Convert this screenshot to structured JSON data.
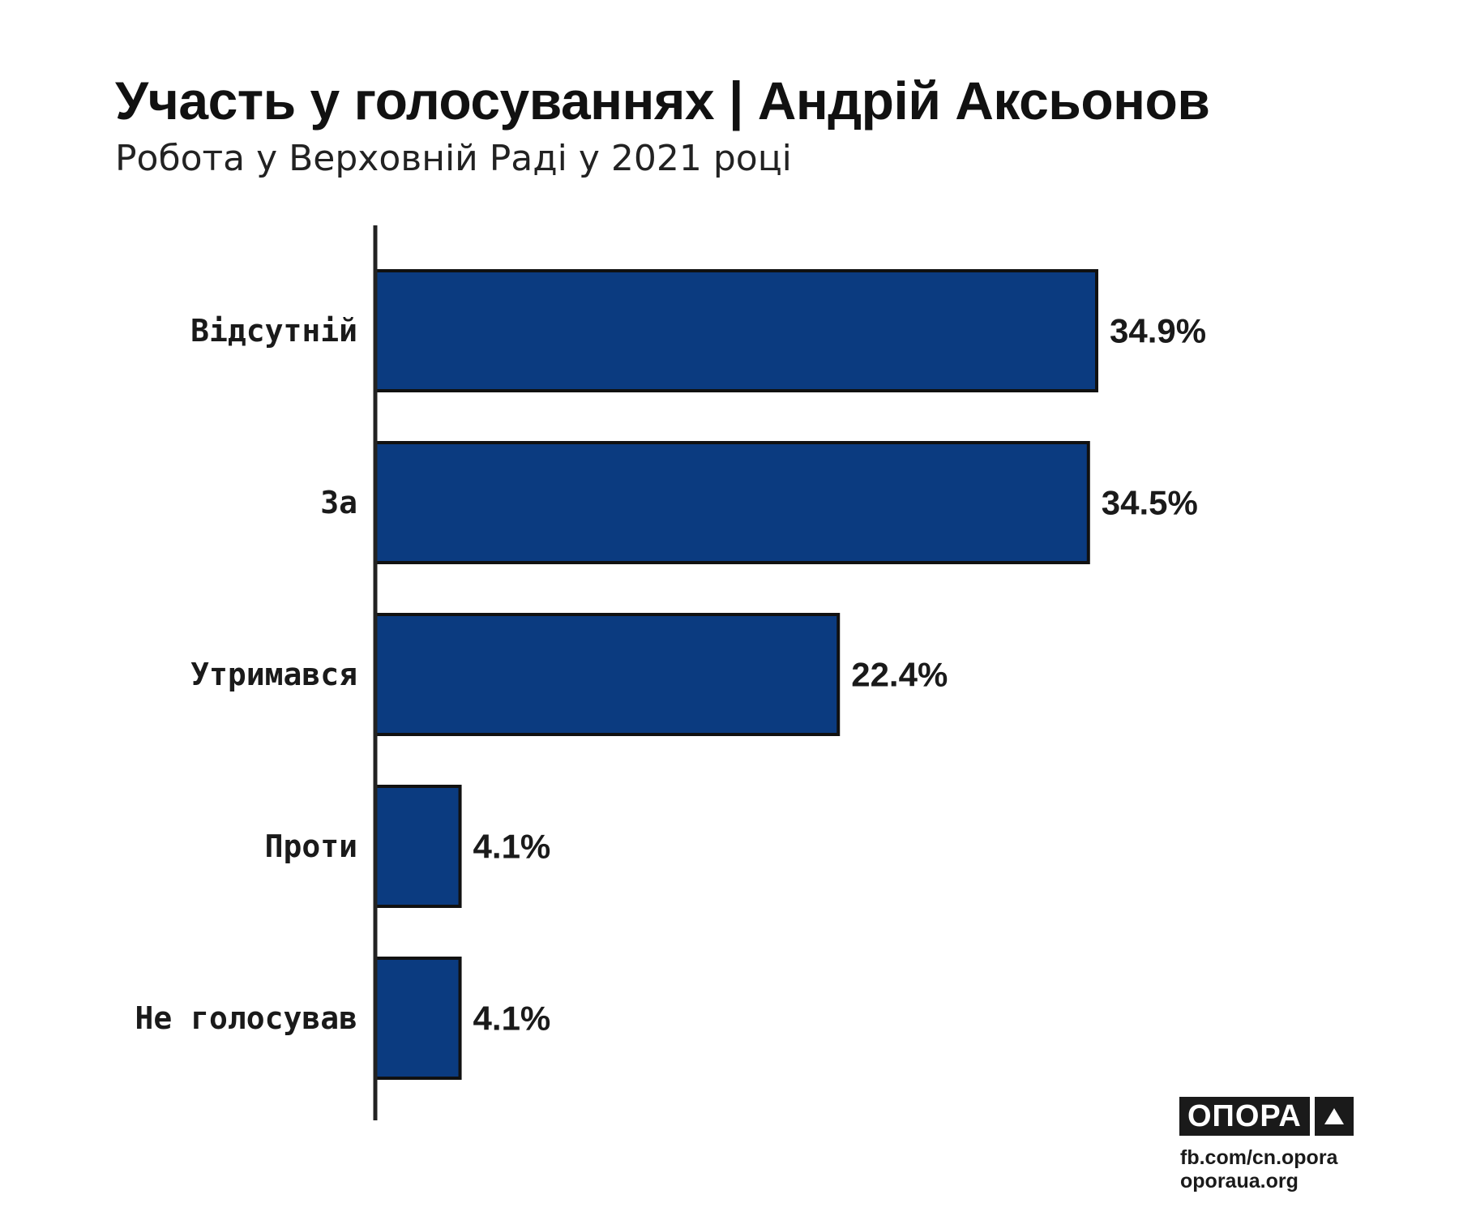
{
  "header": {
    "title": "Участь у голосуваннях | Андрій Аксьонов",
    "subtitle": "Робота у Верховній Раді у 2021 році"
  },
  "chart_data": {
    "type": "bar",
    "orientation": "horizontal",
    "title": "Участь у голосуваннях | Андрій Аксьонов",
    "subtitle": "Робота у Верховній Раді у 2021 році",
    "categories": [
      "Відсутній",
      "За",
      "Утримався",
      "Проти",
      "Не голосував"
    ],
    "values": [
      34.9,
      34.5,
      22.4,
      4.1,
      4.1
    ],
    "value_labels": [
      "34.9%",
      "34.5%",
      "22.4%",
      "4.1%",
      "4.1%"
    ],
    "xlabel": "",
    "ylabel": "",
    "xlim": [
      0,
      40
    ],
    "grid": false,
    "legend": "none",
    "bar_color": "#0b3b80",
    "bar_border_color": "#111111"
  },
  "logo": {
    "text": "ОПОРА",
    "icon": "triangle-icon"
  },
  "footer": {
    "link1": "fb.com/cn.opora",
    "link2": "oporaua.org"
  }
}
